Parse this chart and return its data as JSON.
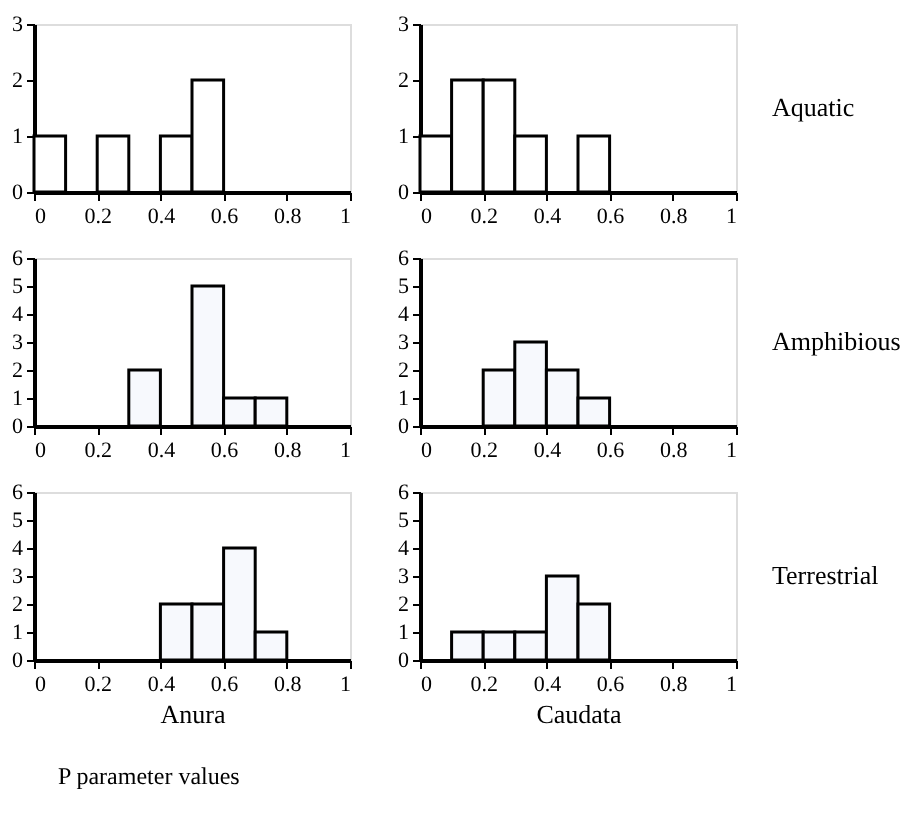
{
  "chart_data": [
    {
      "type": "histogram",
      "bins": [
        0,
        0.1,
        0.2,
        0.3,
        0.4,
        0.5,
        0.6,
        0.7,
        0.8,
        0.9,
        1
      ],
      "values": [
        1,
        0,
        1,
        0,
        1,
        2,
        0,
        0,
        0,
        0
      ],
      "color": "#ffffff",
      "xlim": [
        0,
        1
      ],
      "ylim": [
        0,
        3
      ],
      "xticks": [
        0,
        0.2,
        0.4,
        0.6,
        0.8,
        1
      ],
      "yticks": [
        0,
        1,
        2,
        3
      ]
    },
    {
      "type": "histogram",
      "bins": [
        0,
        0.1,
        0.2,
        0.3,
        0.4,
        0.5,
        0.6,
        0.7,
        0.8,
        0.9,
        1
      ],
      "values": [
        1,
        2,
        2,
        1,
        0,
        1,
        0,
        0,
        0,
        0
      ],
      "color": "#ffffff",
      "xlim": [
        0,
        1
      ],
      "ylim": [
        0,
        3
      ],
      "xticks": [
        0,
        0.2,
        0.4,
        0.6,
        0.8,
        1
      ],
      "yticks": [
        0,
        1,
        2,
        3
      ],
      "annotations": [
        "Aquatic"
      ]
    },
    {
      "type": "histogram",
      "bins": [
        0,
        0.1,
        0.2,
        0.3,
        0.4,
        0.5,
        0.6,
        0.7,
        0.8,
        0.9,
        1
      ],
      "values": [
        0,
        0,
        0,
        2,
        0,
        5,
        1,
        1,
        0,
        0
      ],
      "color": "#f7f9fd",
      "xlim": [
        0,
        1
      ],
      "ylim": [
        0,
        6
      ],
      "xticks": [
        0,
        0.2,
        0.4,
        0.6,
        0.8,
        1
      ],
      "yticks": [
        0,
        1,
        2,
        3,
        4,
        5,
        6
      ]
    },
    {
      "type": "histogram",
      "bins": [
        0,
        0.1,
        0.2,
        0.3,
        0.4,
        0.5,
        0.6,
        0.7,
        0.8,
        0.9,
        1
      ],
      "values": [
        0,
        0,
        2,
        3,
        2,
        1,
        0,
        0,
        0,
        0
      ],
      "color": "#f7f9fd",
      "xlim": [
        0,
        1
      ],
      "ylim": [
        0,
        6
      ],
      "xticks": [
        0,
        0.2,
        0.4,
        0.6,
        0.8,
        1
      ],
      "yticks": [
        0,
        1,
        2,
        3,
        4,
        5,
        6
      ],
      "annotations": [
        "Amphibious"
      ]
    },
    {
      "type": "histogram",
      "bins": [
        0,
        0.1,
        0.2,
        0.3,
        0.4,
        0.5,
        0.6,
        0.7,
        0.8,
        0.9,
        1
      ],
      "values": [
        0,
        0,
        0,
        0,
        2,
        2,
        4,
        1,
        0,
        0
      ],
      "color": "#f7f9fd",
      "xlim": [
        0,
        1
      ],
      "ylim": [
        0,
        6
      ],
      "xticks": [
        0,
        0.2,
        0.4,
        0.6,
        0.8,
        1
      ],
      "yticks": [
        0,
        1,
        2,
        3,
        4,
        5,
        6
      ],
      "xlabel": "Anura",
      "annotations": [
        "P parameter values"
      ]
    },
    {
      "type": "histogram",
      "bins": [
        0,
        0.1,
        0.2,
        0.3,
        0.4,
        0.5,
        0.6,
        0.7,
        0.8,
        0.9,
        1
      ],
      "values": [
        0,
        1,
        1,
        1,
        3,
        2,
        0,
        0,
        0,
        0
      ],
      "color": "#f7f9fd",
      "xlim": [
        0,
        1
      ],
      "ylim": [
        0,
        6
      ],
      "xticks": [
        0,
        0.2,
        0.4,
        0.6,
        0.8,
        1
      ],
      "yticks": [
        0,
        1,
        2,
        3,
        4,
        5,
        6
      ],
      "xlabel": "Caudata",
      "annotations": [
        "Terrestrial"
      ]
    }
  ]
}
